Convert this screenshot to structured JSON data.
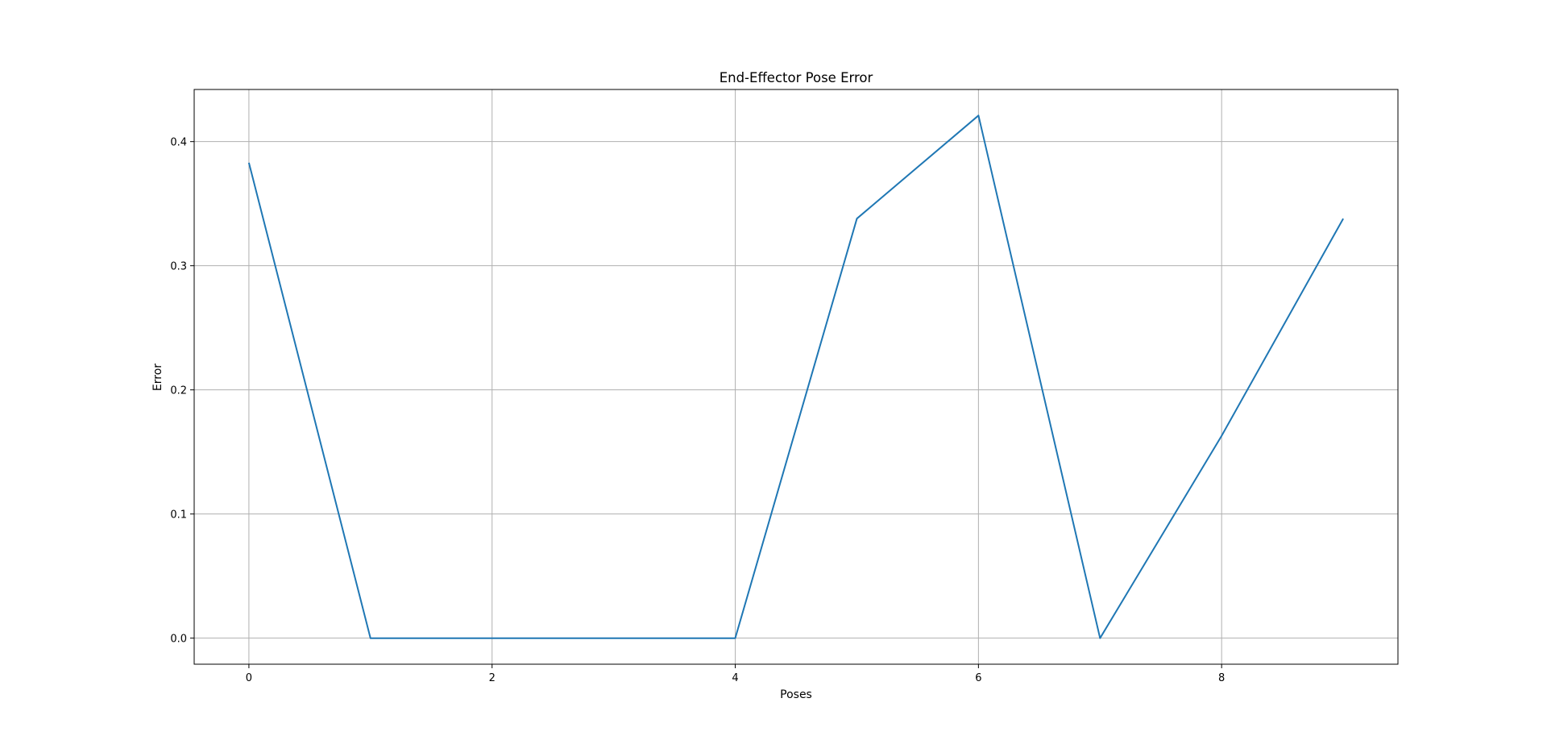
{
  "chart_data": {
    "type": "line",
    "title": "End-Effector Pose Error",
    "xlabel": "Poses",
    "ylabel": "Error",
    "xlim": [
      -0.45,
      9.45
    ],
    "ylim": [
      -0.021,
      0.442
    ],
    "xticks": [
      0,
      2,
      4,
      6,
      8
    ],
    "xtick_labels": [
      "0",
      "2",
      "4",
      "6",
      "8"
    ],
    "yticks": [
      0.0,
      0.1,
      0.2,
      0.3,
      0.4
    ],
    "ytick_labels": [
      "0.0",
      "0.1",
      "0.2",
      "0.3",
      "0.4"
    ],
    "grid": true,
    "legend": "none",
    "series": [
      {
        "x": [
          0,
          1,
          2,
          3,
          4,
          5,
          6,
          7,
          8,
          9
        ],
        "y": [
          0.383,
          0.0,
          0.0,
          0.0,
          0.0,
          0.338,
          0.421,
          0.0,
          0.163,
          0.338
        ],
        "color": "#1f77b4"
      }
    ],
    "grid_color": "#b0b0b0",
    "axes_color": "#000000"
  }
}
